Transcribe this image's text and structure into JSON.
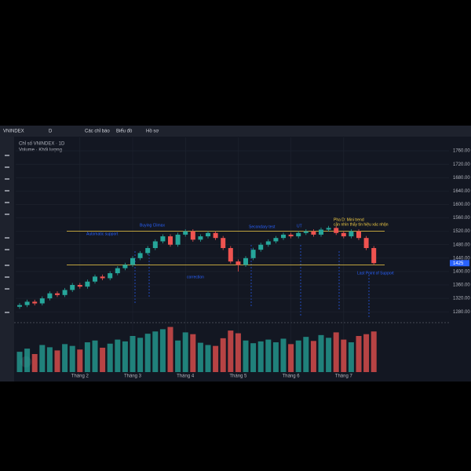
{
  "toolbar": {
    "symbol": "VNINDEX",
    "interval": "D",
    "items": [
      "Các chỉ báo",
      "Biểu đồ",
      "Hồ sơ"
    ]
  },
  "chart_data": {
    "type": "candlestick",
    "title": "Chỉ số VNINDEX · 1D",
    "subtitle": "Volume · Khối lượng",
    "categories": [
      null,
      null,
      null,
      null,
      null,
      null,
      null,
      null,
      "Tháng 2",
      null,
      null,
      null,
      null,
      null,
      null,
      "Tháng 3",
      null,
      null,
      null,
      null,
      null,
      null,
      "Tháng 4",
      null,
      null,
      null,
      null,
      null,
      null,
      "Tháng 5",
      null,
      null,
      null,
      null,
      null,
      null,
      "Tháng 6",
      null,
      null,
      null,
      null,
      null,
      null,
      "Tháng 7",
      null,
      null,
      null,
      null
    ],
    "open": [
      1295,
      1300,
      1310,
      1305,
      1320,
      1335,
      1330,
      1345,
      1360,
      1355,
      1370,
      1385,
      1380,
      1395,
      1410,
      1420,
      1440,
      1455,
      1470,
      1490,
      1505,
      1480,
      1510,
      1520,
      1495,
      1505,
      1515,
      1500,
      1470,
      1430,
      1420,
      1440,
      1465,
      1480,
      1490,
      1500,
      1510,
      1505,
      1515,
      1520,
      1510,
      1525,
      1530,
      1515,
      1505,
      1520,
      1500,
      1470
    ],
    "high": [
      1306,
      1316,
      1316,
      1326,
      1341,
      1341,
      1351,
      1366,
      1366,
      1376,
      1391,
      1391,
      1401,
      1416,
      1426,
      1446,
      1461,
      1476,
      1496,
      1511,
      1511,
      1516,
      1526,
      1526,
      1511,
      1521,
      1521,
      1506,
      1476,
      1436,
      1446,
      1471,
      1486,
      1496,
      1506,
      1516,
      1516,
      1521,
      1526,
      1526,
      1531,
      1536,
      1536,
      1521,
      1526,
      1526,
      1506,
      1476
    ],
    "low": [
      1289,
      1294,
      1299,
      1299,
      1314,
      1324,
      1324,
      1339,
      1349,
      1349,
      1364,
      1374,
      1374,
      1389,
      1404,
      1414,
      1434,
      1449,
      1464,
      1484,
      1474,
      1474,
      1504,
      1489,
      1489,
      1499,
      1494,
      1464,
      1424,
      1400,
      1414,
      1434,
      1459,
      1474,
      1484,
      1494,
      1499,
      1499,
      1509,
      1504,
      1504,
      1519,
      1509,
      1499,
      1499,
      1494,
      1464,
      1419
    ],
    "close": [
      1300,
      1310,
      1305,
      1320,
      1335,
      1330,
      1345,
      1360,
      1355,
      1370,
      1385,
      1380,
      1395,
      1410,
      1420,
      1440,
      1455,
      1470,
      1490,
      1505,
      1480,
      1510,
      1520,
      1495,
      1505,
      1515,
      1500,
      1470,
      1430,
      1420,
      1440,
      1465,
      1480,
      1490,
      1500,
      1510,
      1505,
      1515,
      1520,
      1510,
      1525,
      1530,
      1515,
      1505,
      1520,
      1500,
      1470,
      1425
    ],
    "volumes": [
      45,
      52,
      40,
      60,
      55,
      48,
      62,
      58,
      50,
      66,
      70,
      54,
      63,
      72,
      68,
      80,
      76,
      85,
      90,
      95,
      100,
      70,
      88,
      84,
      65,
      60,
      58,
      75,
      92,
      86,
      70,
      64,
      68,
      72,
      66,
      74,
      62,
      70,
      78,
      69,
      82,
      76,
      88,
      72,
      66,
      80,
      84,
      90
    ],
    "up_color": "#26a69a",
    "down_color": "#ef5350",
    "ylim": [
      1250,
      1800
    ],
    "yticks": [
      {
        "value": 1280,
        "label": "1280.00"
      },
      {
        "value": 1320,
        "label": "1320.00"
      },
      {
        "value": 1360,
        "label": "1360.00"
      },
      {
        "value": 1400,
        "label": "1400.00"
      },
      {
        "value": 1440,
        "label": "1440.00"
      },
      {
        "value": 1480,
        "label": "1480.00"
      },
      {
        "value": 1520,
        "label": "1520.00"
      },
      {
        "value": 1560,
        "label": "1560.00"
      },
      {
        "value": 1600,
        "label": "1600.00"
      },
      {
        "value": 1640,
        "label": "1640.00"
      },
      {
        "value": 1680,
        "label": "1680.00"
      },
      {
        "value": 1720,
        "label": "1720.00"
      },
      {
        "value": 1760,
        "label": "1760.00"
      }
    ],
    "volume_ylim": [
      0,
      120
    ],
    "levels": [
      1520,
      1420
    ],
    "level_color": "#f7d046",
    "annotations": [
      "Automatic support",
      "Buying Climax",
      "Secondary test",
      "UT",
      "Pha D: Mini trend",
      "cần nhìn thấy tín hiệu xác nhận",
      "correction",
      "Last Point of Support"
    ],
    "grid": true
  }
}
